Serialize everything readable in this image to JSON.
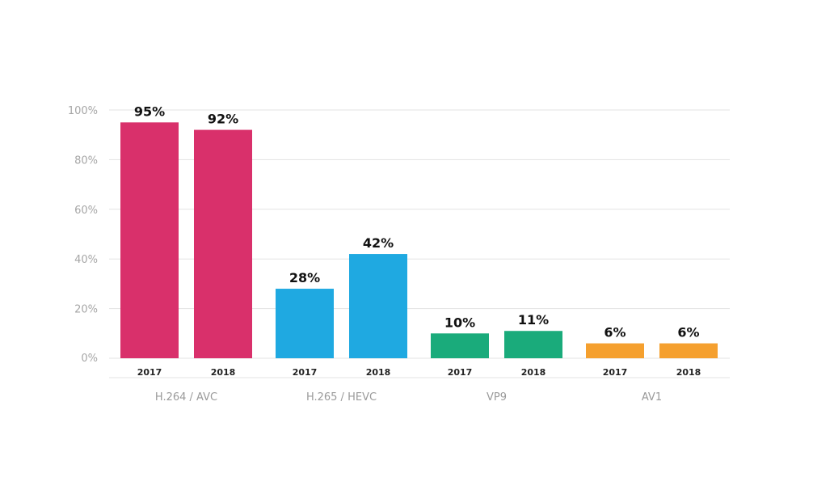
{
  "chart_data": {
    "type": "bar",
    "title": "",
    "xlabel": "",
    "ylabel": "",
    "ylim": [
      0,
      100
    ],
    "y_ticks": [
      "0%",
      "20%",
      "40%",
      "60%",
      "80%",
      "100%"
    ],
    "grid": true,
    "groups": [
      {
        "name": "H.264 / AVC",
        "color": "#d9306b",
        "bars": [
          {
            "year": "2017",
            "value": 95,
            "label": "95%"
          },
          {
            "year": "2018",
            "value": 92,
            "label": "92%"
          }
        ]
      },
      {
        "name": "H.265 / HEVC",
        "color": "#1fa9e1",
        "bars": [
          {
            "year": "2017",
            "value": 28,
            "label": "28%"
          },
          {
            "year": "2018",
            "value": 42,
            "label": "42%"
          }
        ]
      },
      {
        "name": "VP9",
        "color": "#1aab7b",
        "bars": [
          {
            "year": "2017",
            "value": 10,
            "label": "10%"
          },
          {
            "year": "2018",
            "value": 11,
            "label": "11%"
          }
        ]
      },
      {
        "name": "AV1",
        "color": "#f5a02f",
        "bars": [
          {
            "year": "2017",
            "value": 6,
            "label": "6%"
          },
          {
            "year": "2018",
            "value": 6,
            "label": "6%"
          }
        ]
      }
    ]
  }
}
